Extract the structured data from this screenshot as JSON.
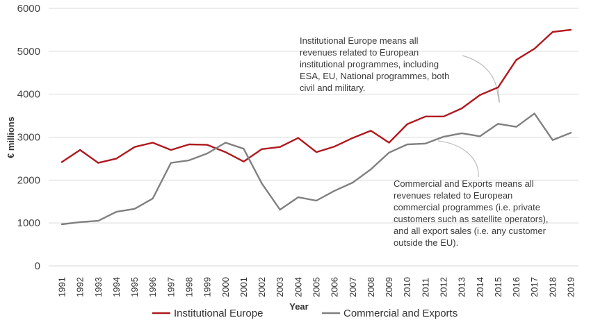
{
  "chart_data": {
    "type": "line",
    "title": "",
    "xlabel": "Year",
    "ylabel": "€ millions",
    "ylim": [
      0,
      6000
    ],
    "yticks": [
      0,
      1000,
      2000,
      3000,
      4000,
      5000,
      6000
    ],
    "grid": true,
    "legend_position": "bottom",
    "x": [
      "1991",
      "1992",
      "1993",
      "1994",
      "1995",
      "1996",
      "1997",
      "1998",
      "1999",
      "2000",
      "2001",
      "2002",
      "2003",
      "2004",
      "2005",
      "2006",
      "2007",
      "2008",
      "2009",
      "2010",
      "2011",
      "2012",
      "2013",
      "2014",
      "2015",
      "2016",
      "2017",
      "2018",
      "2019"
    ],
    "series": [
      {
        "name": "Institutional Europe",
        "color": "#b0181e",
        "values": [
          2420,
          2700,
          2400,
          2500,
          2770,
          2870,
          2700,
          2830,
          2820,
          2650,
          2430,
          2720,
          2770,
          2980,
          2650,
          2780,
          2980,
          3150,
          2870,
          3300,
          3480,
          3480,
          3670,
          3980,
          4160,
          4800,
          5060,
          5450,
          5500
        ]
      },
      {
        "name": "Commercial and Exports",
        "color": "#808080",
        "values": [
          970,
          1020,
          1050,
          1260,
          1330,
          1570,
          2400,
          2460,
          2620,
          2870,
          2730,
          1920,
          1310,
          1600,
          1520,
          1750,
          1940,
          2250,
          2640,
          2830,
          2850,
          3010,
          3090,
          3020,
          3310,
          3240,
          3550,
          2930,
          3100
        ]
      }
    ],
    "annotations": [
      {
        "series": "Institutional Europe",
        "lines": [
          "Institutional Europe means all",
          "revenues related to European",
          "institutional programmes, including",
          "ESA, EU, National programmes, both",
          "civil and military."
        ]
      },
      {
        "series": "Commercial and Exports",
        "lines": [
          "Commercial and Exports means all",
          "revenues related to European",
          "commercial programmes (i.e. private",
          "customers such as satellite operators),",
          "and all export sales (i.e. any customer",
          "outside the EU)."
        ]
      }
    ]
  }
}
